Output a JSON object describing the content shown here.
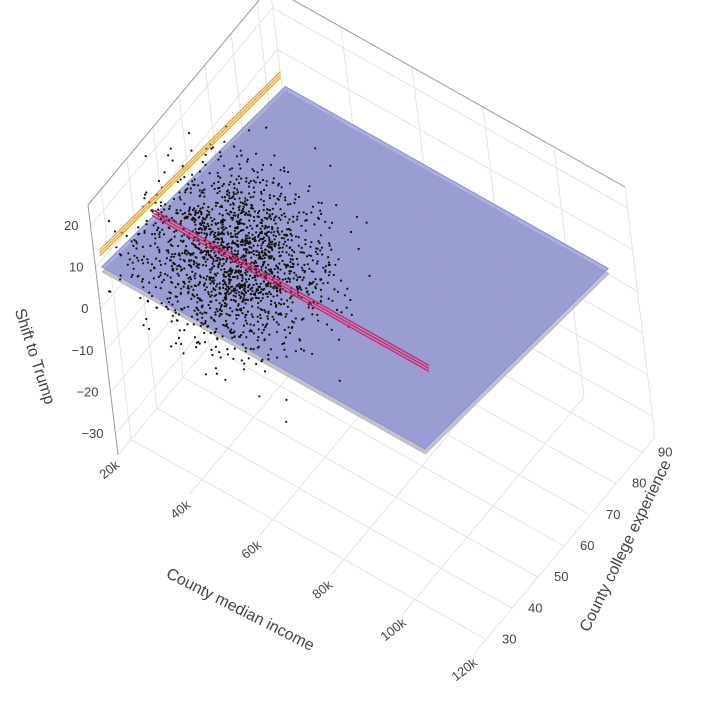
{
  "chart_data": {
    "type": "scatter3d",
    "axes": {
      "x": {
        "title": "County median income",
        "range": [
          20000,
          120000
        ],
        "ticks": [
          20000,
          40000,
          60000,
          80000,
          100000,
          120000
        ],
        "tick_labels": [
          "20k",
          "40k",
          "60k",
          "80k",
          "100k",
          "120k"
        ]
      },
      "y": {
        "title": "County college experience",
        "range": [
          25,
          95
        ],
        "ticks": [
          30,
          40,
          50,
          60,
          70,
          80,
          90
        ],
        "tick_labels": [
          "30",
          "40",
          "50",
          "60",
          "70",
          "80",
          "90"
        ]
      },
      "z": {
        "title": "Shift to Trump",
        "range": [
          -35,
          25
        ],
        "ticks": [
          -30,
          -20,
          -10,
          0,
          10,
          20
        ],
        "tick_labels": [
          "−30",
          "−20",
          "−10",
          "0",
          "10",
          "20"
        ]
      }
    },
    "grid": true,
    "planes": [
      {
        "name": "fit-plane-gray",
        "color": "#b8b8bd",
        "z_at_x_min_y_min": 10,
        "z_slope_x_per_10k": 0,
        "z_slope_y_per_10": -1.2,
        "offset": -1.2
      },
      {
        "name": "fit-plane-blue",
        "color": "#8a8fd6",
        "z_at_x_min_y_min": 10,
        "z_slope_x_per_10k": 0,
        "z_slope_y_per_10": -1.2,
        "offset": 0
      }
    ],
    "lines": [
      {
        "color": "#e0a020",
        "points": [
          [
            20000,
            27,
            12
          ],
          [
            20000,
            95,
            4
          ]
        ]
      },
      {
        "color": "#d81b60",
        "points": [
          [
            22000,
            44,
            10
          ],
          [
            100000,
            44,
            10
          ]
        ]
      }
    ],
    "points_summary": {
      "count": 1800,
      "x_center": 45000,
      "y_center": 45,
      "z_center": 9
    }
  }
}
